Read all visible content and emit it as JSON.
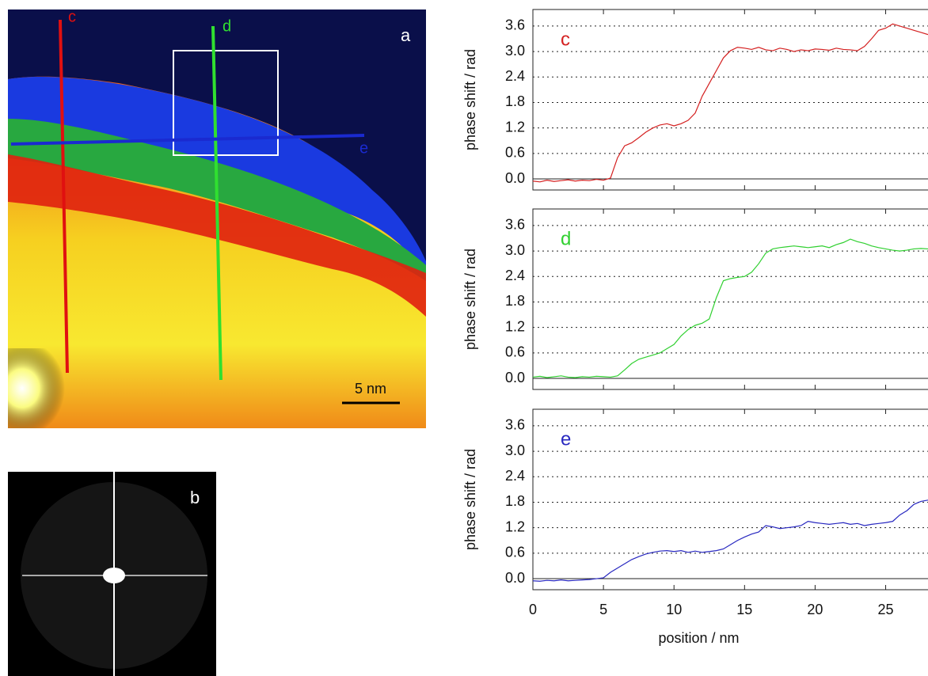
{
  "image_panels": {
    "a": {
      "label": "a",
      "line_labels": [
        "c",
        "d",
        "e"
      ],
      "scale_bar": "5 nm"
    },
    "b": {
      "label": "b"
    }
  },
  "chart_data": [
    {
      "type": "line",
      "annotation": "c",
      "ylabel": "phase shift / rad",
      "x": [
        0,
        0.5,
        1,
        1.5,
        2,
        2.5,
        3,
        3.5,
        4,
        4.5,
        5,
        5.5,
        6,
        6.5,
        7,
        7.5,
        8,
        8.5,
        9,
        9.5,
        10,
        10.5,
        11,
        11.5,
        12,
        12.5,
        13,
        13.5,
        14,
        14.5,
        15,
        15.5,
        16,
        16.5,
        17,
        17.5,
        18,
        18.5,
        19,
        19.5,
        20,
        20.5,
        21,
        21.5,
        22,
        22.5,
        23,
        23.5,
        24,
        24.5,
        25,
        25.5,
        26,
        26.5,
        27,
        27.5,
        28
      ],
      "series": [
        {
          "color": "#d42020",
          "values": [
            -0.05,
            -0.07,
            -0.03,
            -0.06,
            -0.04,
            -0.02,
            -0.05,
            -0.03,
            -0.04,
            -0.01,
            -0.03,
            0.02,
            0.5,
            0.78,
            0.85,
            0.97,
            1.1,
            1.2,
            1.27,
            1.3,
            1.25,
            1.3,
            1.38,
            1.55,
            1.95,
            2.25,
            2.55,
            2.85,
            3.02,
            3.1,
            3.08,
            3.05,
            3.1,
            3.04,
            3.02,
            3.08,
            3.05,
            3.0,
            3.04,
            3.02,
            3.06,
            3.05,
            3.03,
            3.08,
            3.05,
            3.04,
            3.02,
            3.12,
            3.3,
            3.5,
            3.55,
            3.65,
            3.6,
            3.55,
            3.5,
            3.45,
            3.4
          ]
        }
      ],
      "xlim": [
        0,
        28
      ],
      "xticks": [
        0,
        5,
        10,
        15,
        20,
        25
      ],
      "ylim": [
        -0.26,
        3.99
      ],
      "yticks": [
        {
          "value": 0,
          "label": "0.0"
        },
        0.6,
        1.2,
        1.8,
        2.4,
        {
          "value": 3,
          "label": "3.0"
        },
        3.6
      ],
      "grid": true
    },
    {
      "type": "line",
      "annotation": "d",
      "ylabel": "phase shift / rad",
      "x": [
        0,
        0.5,
        1,
        1.5,
        2,
        2.5,
        3,
        3.5,
        4,
        4.5,
        5,
        5.5,
        6,
        6.5,
        7,
        7.5,
        8,
        8.5,
        9,
        9.5,
        10,
        10.5,
        11,
        11.5,
        12,
        12.5,
        13,
        13.5,
        14,
        14.5,
        15,
        15.5,
        16,
        16.5,
        17,
        17.5,
        18,
        18.5,
        19,
        19.5,
        20,
        20.5,
        21,
        21.5,
        22,
        22.5,
        23,
        23.5,
        24,
        24.5,
        25,
        25.5,
        26,
        26.5,
        27,
        27.5,
        28
      ],
      "series": [
        {
          "color": "#30d030",
          "values": [
            0.03,
            0.05,
            0.02,
            0.04,
            0.06,
            0.03,
            0.02,
            0.04,
            0.03,
            0.05,
            0.04,
            0.03,
            0.06,
            0.2,
            0.35,
            0.45,
            0.5,
            0.55,
            0.6,
            0.7,
            0.8,
            1.0,
            1.15,
            1.25,
            1.3,
            1.4,
            1.9,
            2.3,
            2.35,
            2.38,
            2.4,
            2.5,
            2.7,
            2.95,
            3.05,
            3.08,
            3.1,
            3.12,
            3.1,
            3.08,
            3.1,
            3.12,
            3.08,
            3.15,
            3.2,
            3.28,
            3.22,
            3.18,
            3.12,
            3.08,
            3.05,
            3.02,
            3.0,
            3.02,
            3.05,
            3.06,
            3.05
          ]
        }
      ],
      "xlim": [
        0,
        28
      ],
      "xticks": [
        0,
        5,
        10,
        15,
        20,
        25
      ],
      "ylim": [
        -0.26,
        3.99
      ],
      "yticks": [
        {
          "value": 0,
          "label": "0.0"
        },
        0.6,
        1.2,
        1.8,
        2.4,
        {
          "value": 3,
          "label": "3.0"
        },
        3.6
      ],
      "grid": true
    },
    {
      "type": "line",
      "annotation": "e",
      "ylabel": "phase shift / rad",
      "xlabel": "position / nm",
      "x": [
        0,
        0.5,
        1,
        1.5,
        2,
        2.5,
        3,
        3.5,
        4,
        4.5,
        5,
        5.5,
        6,
        6.5,
        7,
        7.5,
        8,
        8.5,
        9,
        9.5,
        10,
        10.5,
        11,
        11.5,
        12,
        12.5,
        13,
        13.5,
        14,
        14.5,
        15,
        15.5,
        16,
        16.5,
        17,
        17.5,
        18,
        18.5,
        19,
        19.5,
        20,
        20.5,
        21,
        21.5,
        22,
        22.5,
        23,
        23.5,
        24,
        24.5,
        25,
        25.5,
        26,
        26.5,
        27,
        27.5,
        28
      ],
      "series": [
        {
          "color": "#2828c0",
          "values": [
            -0.05,
            -0.06,
            -0.04,
            -0.05,
            -0.03,
            -0.05,
            -0.04,
            -0.03,
            -0.02,
            0.0,
            0.02,
            0.15,
            0.25,
            0.35,
            0.45,
            0.52,
            0.58,
            0.62,
            0.65,
            0.66,
            0.64,
            0.66,
            0.62,
            0.65,
            0.62,
            0.64,
            0.66,
            0.7,
            0.8,
            0.9,
            0.98,
            1.05,
            1.1,
            1.25,
            1.22,
            1.18,
            1.2,
            1.22,
            1.25,
            1.35,
            1.32,
            1.3,
            1.28,
            1.3,
            1.32,
            1.28,
            1.3,
            1.25,
            1.28,
            1.3,
            1.32,
            1.35,
            1.5,
            1.6,
            1.75,
            1.82,
            1.85
          ]
        }
      ],
      "xlim": [
        0,
        28
      ],
      "xticks": [
        0,
        5,
        10,
        15,
        20,
        25
      ],
      "xticklabels_shown": true,
      "ylim": [
        -0.26,
        3.99
      ],
      "yticks": [
        {
          "value": 0,
          "label": "0.0"
        },
        0.6,
        1.2,
        1.8,
        2.4,
        {
          "value": 3,
          "label": "3.0"
        },
        3.6
      ],
      "grid": true
    }
  ]
}
